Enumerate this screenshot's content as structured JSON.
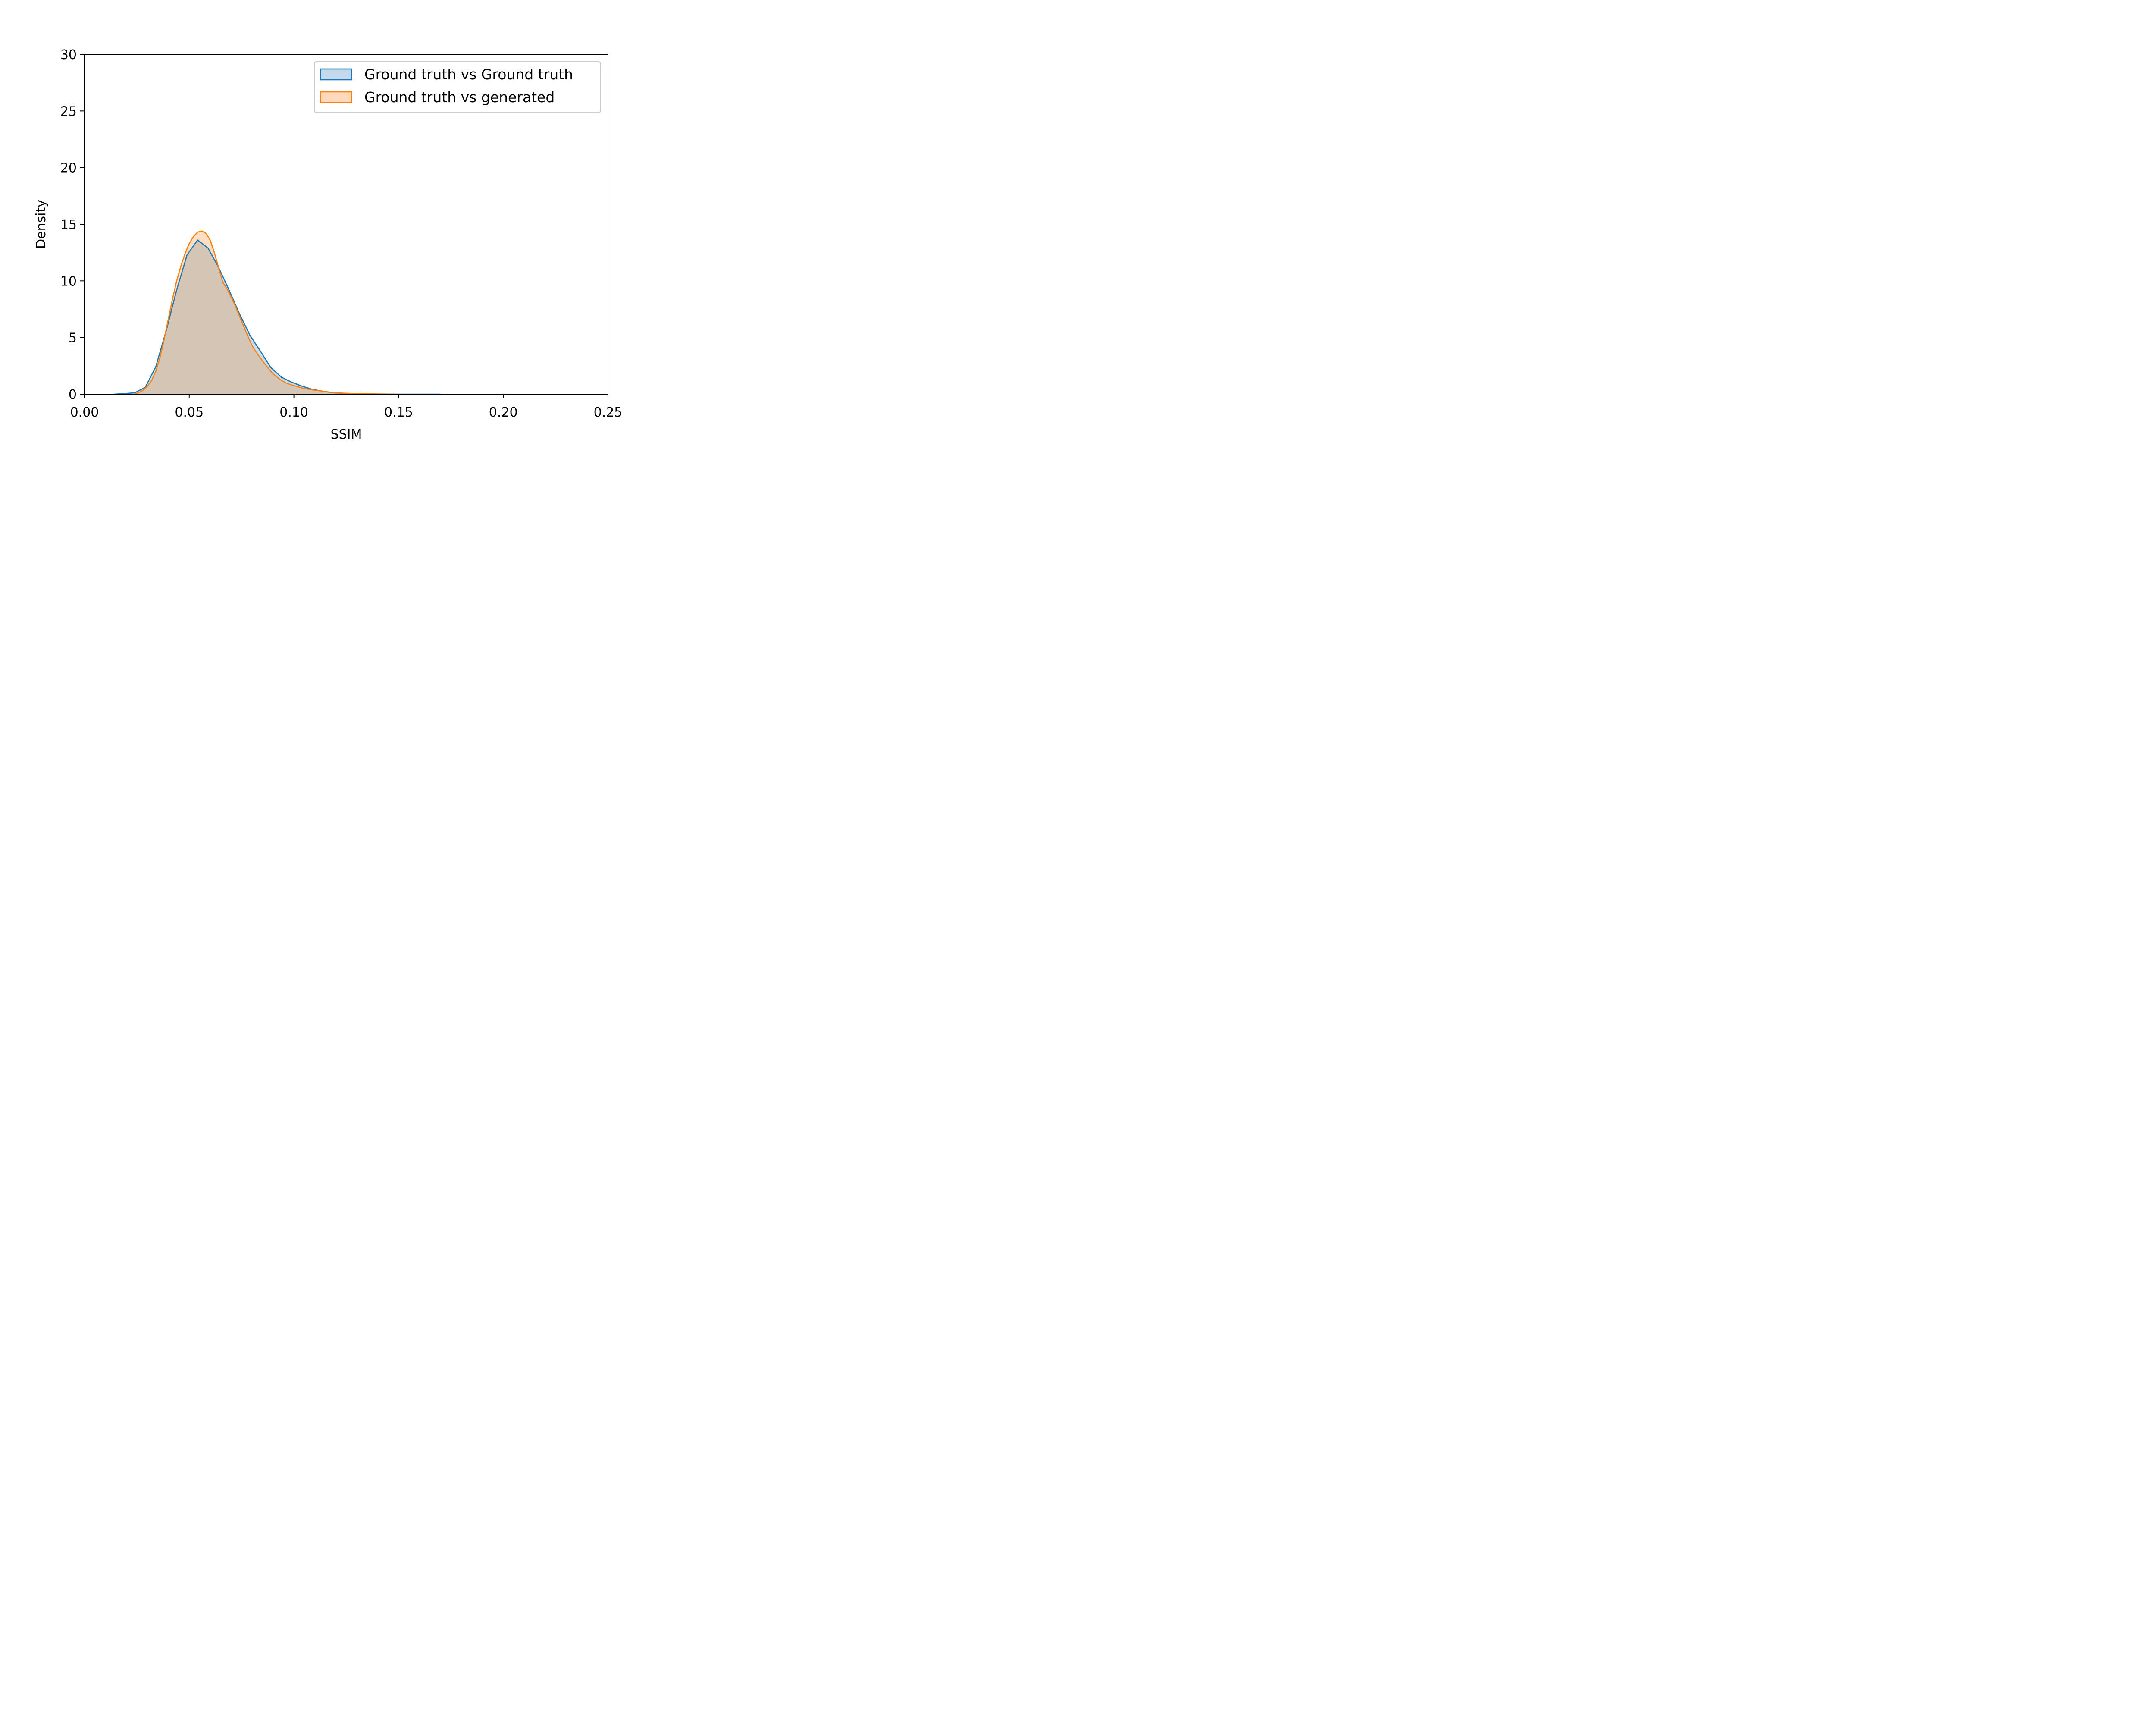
{
  "chart_data": {
    "type": "area",
    "title": "",
    "xlabel": "SSIM",
    "ylabel": "Density",
    "xlim": [
      0.0,
      0.25
    ],
    "ylim": [
      0,
      30
    ],
    "xticks": [
      0.0,
      0.05,
      0.1,
      0.15,
      0.2,
      0.25
    ],
    "xtick_labels": [
      "0.00",
      "0.05",
      "0.10",
      "0.15",
      "0.20",
      "0.25"
    ],
    "yticks": [
      0,
      5,
      10,
      15,
      20,
      25,
      30
    ],
    "ytick_labels": [
      "0",
      "5",
      "10",
      "15",
      "20",
      "25",
      "30"
    ],
    "grid": false,
    "legend_position": "top-right",
    "series": [
      {
        "name": "Ground truth vs Ground truth",
        "color": "#1f77b4",
        "fill": "#c5d9ec",
        "x": [
          0.014,
          0.019,
          0.024,
          0.029,
          0.034,
          0.039,
          0.044,
          0.049,
          0.054,
          0.059,
          0.064,
          0.069,
          0.074,
          0.079,
          0.084,
          0.089,
          0.094,
          0.099,
          0.104,
          0.109,
          0.114,
          0.119,
          0.124,
          0.129,
          0.134,
          0.139,
          0.144,
          0.15,
          0.17
        ],
        "values": [
          0.0,
          0.05,
          0.12,
          0.6,
          2.4,
          5.6,
          9.2,
          12.3,
          13.6,
          12.9,
          11.2,
          9.2,
          7.1,
          5.2,
          3.8,
          2.35,
          1.5,
          1.05,
          0.7,
          0.42,
          0.25,
          0.12,
          0.08,
          0.05,
          0.03,
          0.02,
          0.01,
          0.0,
          0.0
        ]
      },
      {
        "name": "Ground truth vs generated",
        "color": "#ff7f0e",
        "fill": "#ffd9bc",
        "x": [
          0.024,
          0.026,
          0.028,
          0.03,
          0.032,
          0.034,
          0.036,
          0.038,
          0.04,
          0.042,
          0.044,
          0.046,
          0.048,
          0.05,
          0.052,
          0.054,
          0.056,
          0.058,
          0.06,
          0.062,
          0.064,
          0.066,
          0.068,
          0.07,
          0.072,
          0.074,
          0.076,
          0.078,
          0.08,
          0.082,
          0.084,
          0.086,
          0.088,
          0.09,
          0.093,
          0.096,
          0.1,
          0.104,
          0.108,
          0.112,
          0.116,
          0.12,
          0.125,
          0.13,
          0.135,
          0.14,
          0.15
        ],
        "values": [
          0.0,
          0.15,
          0.35,
          0.7,
          1.2,
          2.0,
          3.2,
          4.8,
          6.6,
          8.4,
          10.0,
          11.3,
          12.4,
          13.3,
          13.9,
          14.3,
          14.4,
          14.2,
          13.6,
          12.5,
          11.2,
          9.9,
          9.3,
          8.6,
          7.8,
          6.9,
          6.0,
          5.1,
          4.3,
          3.7,
          3.2,
          2.7,
          2.25,
          1.8,
          1.35,
          1.0,
          0.75,
          0.55,
          0.4,
          0.3,
          0.2,
          0.12,
          0.08,
          0.05,
          0.03,
          0.01,
          0.0
        ]
      }
    ]
  }
}
